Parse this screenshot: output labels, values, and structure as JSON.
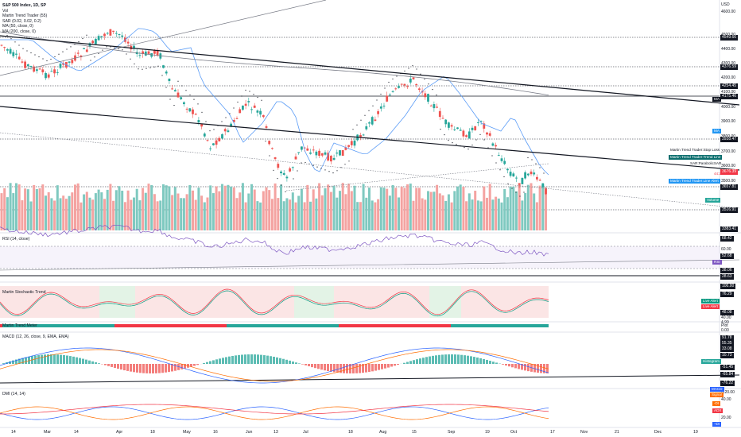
{
  "legend": {
    "symbol": "S&P 500 Index, 1D, SP",
    "lines": [
      "Vol",
      "Martin Trend Trader (55)",
      "SAR (0.02, 0.02, 0.2)",
      "MA (50, close, 0)",
      "MA (200, close, 0)"
    ]
  },
  "currency": "USD",
  "price_axis": [
    "4600.00",
    "4500.00",
    "4400.00",
    "4300.00",
    "4200.00",
    "4100.00",
    "4000.00",
    "3900.00",
    "3800.00",
    "3700.00",
    "3600.00",
    "3500.00"
  ],
  "price_tags": [
    {
      "text": "4549.66",
      "dark": true
    },
    {
      "text": "4376.59",
      "dark": true
    },
    {
      "text": "4254.45",
      "dark": true
    },
    {
      "text": "4175.46",
      "dark": true
    },
    {
      "text": "3938.47",
      "dark": true
    },
    {
      "text": "3676.39",
      "dark": false,
      "color": "#f23645"
    },
    {
      "text": "3657.81",
      "dark": true
    },
    {
      "text": "3516.91",
      "dark": true
    },
    {
      "text": "3383.41",
      "dark": true
    }
  ],
  "price_badges": [
    "MA",
    "MA"
  ],
  "stop_loss_label": "Martin Trend Trader:Stop Loss",
  "trend_line_label": "Martin Trend Trader:Trend Line",
  "sar_label": "SAR:ParabolicSAR",
  "line_alert_label": "Martin Trend Trader:Line Alert",
  "volume_label": "Volume",
  "last_bar_time": "44:28",
  "pane_titles": {
    "rsi": "RSI (14, close)",
    "stoch": "Martin Stochastic Trend",
    "mtm": "Martin Trend Meter",
    "macd": "MACD (12, 26, close, 9, EMA, EMA)",
    "dmi": "DMI (14, 14)"
  },
  "rsi_axis": [
    "68.42",
    "60.00",
    "52.68",
    "38.06",
    "28.63"
  ],
  "rsi_badge": "RSI",
  "stoch_axis": [
    "100.00",
    "76.29",
    "48.08",
    "40.00",
    "4.99"
  ],
  "stoch_alerts": [
    "Live Alert",
    "Live Alert"
  ],
  "mtm_axis": [
    "Plot",
    "0.00"
  ],
  "macd_axis": [
    "91.78",
    "55.35",
    "33.08",
    "10.73",
    "-51.45",
    "-65.84",
    "-76.22",
    "-120.00"
  ],
  "macd_badges": [
    "Histogram",
    "MACD",
    "Signal"
  ],
  "dmi_axis": [
    "40.00",
    "20.00"
  ],
  "dmi_badges": [
    "+DI",
    "ADX",
    "-DI"
  ],
  "time_axis": [
    "14",
    "Mar",
    "14",
    "Apr",
    "18",
    "May",
    "16",
    "Jun",
    "13",
    "Jul",
    "18",
    "Aug",
    "15",
    "Sep",
    "19",
    "Oct",
    "17",
    "Nov",
    "21",
    "Dec",
    "19"
  ],
  "colors": {
    "up": "#26a69a",
    "down": "#ef5350",
    "sma50": "#5b9cf6",
    "sma200": "#787b86",
    "trend": "#131722"
  }
}
